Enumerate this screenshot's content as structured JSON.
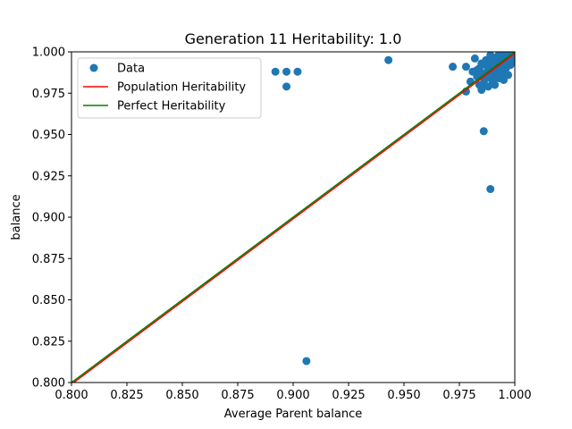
{
  "chart_data": {
    "type": "scatter",
    "title": "Generation 11 Heritability: 1.0",
    "xlabel": "Average Parent balance",
    "ylabel": "balance",
    "xlim": [
      0.8,
      1.0
    ],
    "ylim": [
      0.8,
      1.0
    ],
    "xticks": [
      "0.800",
      "0.825",
      "0.850",
      "0.875",
      "0.900",
      "0.925",
      "0.950",
      "0.975",
      "1.000"
    ],
    "yticks": [
      "0.800",
      "0.825",
      "0.850",
      "0.875",
      "0.900",
      "0.925",
      "0.950",
      "0.975",
      "1.000"
    ],
    "grid": false,
    "legend_position": "top-left",
    "series": [
      {
        "name": "Data",
        "kind": "scatter",
        "color": "#1f77b4",
        "points": [
          [
            0.892,
            0.988
          ],
          [
            0.897,
            0.988
          ],
          [
            0.902,
            0.988
          ],
          [
            0.897,
            0.979
          ],
          [
            0.943,
            0.995
          ],
          [
            0.906,
            0.813
          ],
          [
            0.972,
            0.991
          ],
          [
            0.978,
            0.991
          ],
          [
            0.978,
            0.976
          ],
          [
            0.986,
            0.952
          ],
          [
            0.989,
            0.917
          ],
          [
            0.98,
            0.982
          ],
          [
            0.981,
            0.988
          ],
          [
            0.982,
            0.996
          ],
          [
            0.983,
            0.985
          ],
          [
            0.984,
            0.99
          ],
          [
            0.985,
            0.977
          ],
          [
            0.985,
            0.993
          ],
          [
            0.986,
            0.981
          ],
          [
            0.986,
            0.987
          ],
          [
            0.987,
            0.995
          ],
          [
            0.987,
            0.984
          ],
          [
            0.988,
            0.99
          ],
          [
            0.988,
            0.979
          ],
          [
            0.989,
            0.998
          ],
          [
            0.989,
            0.986
          ],
          [
            0.99,
            0.992
          ],
          [
            0.99,
            0.982
          ],
          [
            0.991,
            0.996
          ],
          [
            0.991,
            0.988
          ],
          [
            0.992,
            0.993
          ],
          [
            0.992,
            0.985
          ],
          [
            0.993,
            0.999
          ],
          [
            0.993,
            0.99
          ],
          [
            0.994,
            0.996
          ],
          [
            0.994,
            0.987
          ],
          [
            0.995,
            0.993
          ],
          [
            0.995,
            0.983
          ],
          [
            0.996,
            0.998
          ],
          [
            0.996,
            0.99
          ],
          [
            0.997,
            0.995
          ],
          [
            0.997,
            0.986
          ],
          [
            0.998,
            0.999
          ],
          [
            0.998,
            0.992
          ],
          [
            0.999,
            0.997
          ],
          [
            0.999,
            0.994
          ],
          [
            0.984,
            0.98
          ],
          [
            0.986,
            0.984
          ],
          [
            0.988,
            0.986
          ],
          [
            0.99,
            0.989
          ],
          [
            0.991,
            0.98
          ],
          [
            0.993,
            0.984
          ],
          [
            0.995,
            0.988
          ],
          [
            0.987,
            0.992
          ],
          [
            0.989,
            0.994
          ],
          [
            0.992,
            0.997
          ],
          [
            0.994,
            0.999
          ],
          [
            0.983,
            0.989
          ],
          [
            0.985,
            0.986
          ],
          [
            0.996,
            0.994
          ],
          [
            0.998,
            0.996
          ]
        ]
      },
      {
        "name": "Population Heritability",
        "kind": "line",
        "color": "#ff0000",
        "points": [
          [
            0.8,
            0.799
          ],
          [
            1.0,
            0.999
          ]
        ]
      },
      {
        "name": "Perfect Heritability",
        "kind": "line",
        "color": "#008000",
        "points": [
          [
            0.8,
            0.8
          ],
          [
            1.0,
            1.0
          ]
        ]
      }
    ]
  }
}
